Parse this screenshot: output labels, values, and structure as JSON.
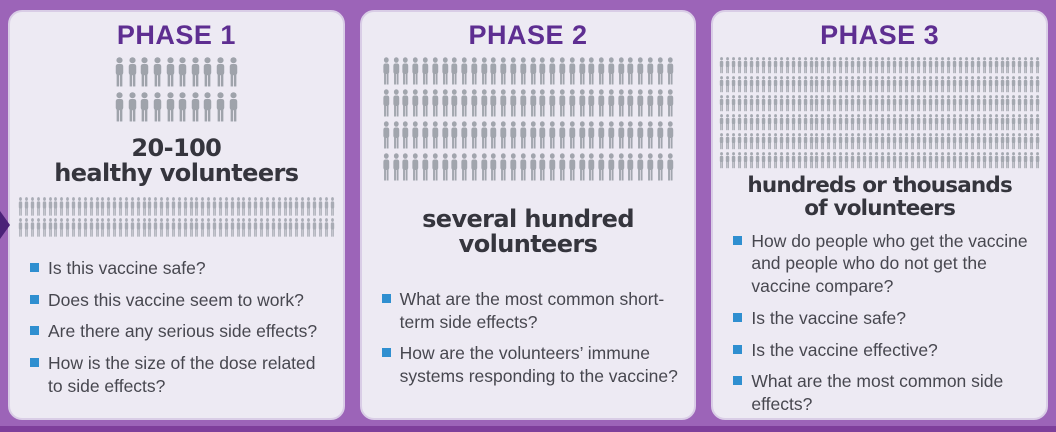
{
  "theme": {
    "bg": "#9c64b8",
    "bar": "#7e3f9b",
    "panel": "#edeaf3",
    "panel_border": "#d9cde6",
    "title": "#5e2e91",
    "headline": "#35353d",
    "text": "#47474f",
    "bullet": "#2f8fd0",
    "arrow": "#4b2178"
  },
  "phases": [
    {
      "title": "PHASE 1",
      "headline": [
        "20-100",
        "healthy volunteers"
      ],
      "icons_above": {
        "rows": 2,
        "per_row": 10,
        "size": "large",
        "color": "#9fa3ab",
        "label": "20-100 volunteers pictograph"
      },
      "icons_below": {
        "rows": 2,
        "per_row": 54,
        "size": "small",
        "color": "#a9acb5",
        "label": "population strip pictograph"
      },
      "bullets": [
        "Is this vaccine safe?",
        "Does this vaccine seem to work?",
        "Are there any serious side effects?",
        "How is the size of the dose related to side effects?"
      ]
    },
    {
      "title": "PHASE 2",
      "headline": [
        "several hundred",
        "volunteers"
      ],
      "icons_above": {
        "rows": 4,
        "per_row": 30,
        "size": "medium",
        "color": "#a1a5ad",
        "label": "several hundred volunteers pictograph"
      },
      "icons_below": null,
      "bullets": [
        "What are the most common short-term side effects?",
        "How are the volunteers’ immune systems responding to the vaccine?"
      ]
    },
    {
      "title": "PHASE 3",
      "headline": [
        "hundreds or thousands",
        "of volunteers"
      ],
      "icons_above": {
        "rows": 6,
        "per_row": 54,
        "size": "tiny",
        "color": "#a4a8b0",
        "label": "hundreds or thousands of volunteers pictograph"
      },
      "icons_below": null,
      "bullets": [
        "How do people who get the vaccine and people who do not get the vaccine compare?",
        "Is the vaccine safe?",
        "Is the vaccine effective?",
        "What are the most common side effects?"
      ]
    }
  ]
}
